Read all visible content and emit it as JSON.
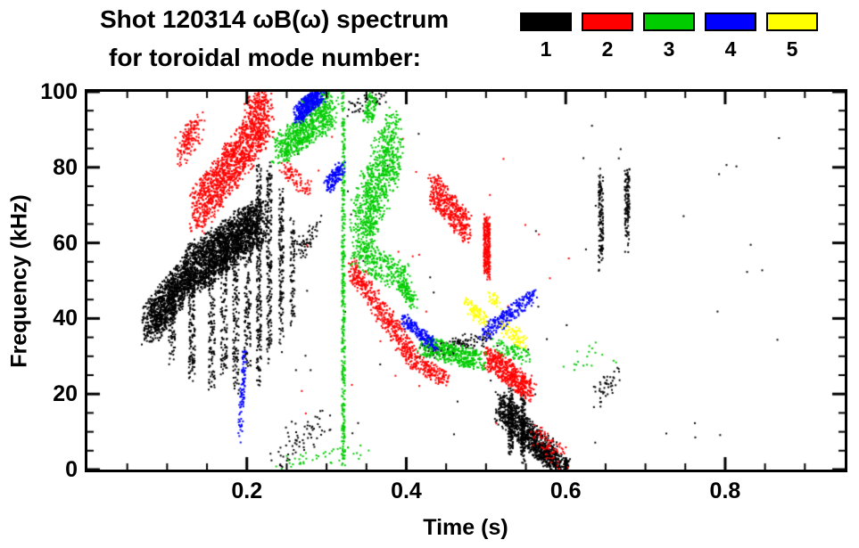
{
  "header": {
    "line1": "Shot 120314 ωB(ω) spectrum",
    "line2": "for toroidal mode number:"
  },
  "legend": {
    "items": [
      {
        "label": "1",
        "color": "#000000"
      },
      {
        "label": "2",
        "color": "#ff0000"
      },
      {
        "label": "3",
        "color": "#00cc00"
      },
      {
        "label": "4",
        "color": "#0000ff"
      },
      {
        "label": "5",
        "color": "#ffff00"
      }
    ]
  },
  "chart_data": {
    "type": "scatter",
    "title": "Shot 120314 ωB(ω) spectrum for toroidal mode number",
    "xlabel": "Time (s)",
    "ylabel": "Frequency (kHz)",
    "xlim": [
      0,
      0.95
    ],
    "ylim": [
      0,
      100
    ],
    "background": "#ffffff",
    "axis_color": "#000000",
    "grid": false,
    "legend_position": "top-right",
    "x_ticks": {
      "major": [
        0.2,
        0.4,
        0.6,
        0.8
      ],
      "labels": [
        "0.2",
        "0.4",
        "0.6",
        "0.8"
      ],
      "minor_step": 0.05
    },
    "y_ticks": {
      "major": [
        0,
        20,
        40,
        60,
        80,
        100
      ],
      "labels": [
        "0",
        "20",
        "40",
        "60",
        "80",
        "100"
      ],
      "minor_step": 5
    },
    "series": [
      {
        "name": "1",
        "color": "#000000",
        "clusters": [
          {
            "t": [
              0.075,
              0.13
            ],
            "f": [
              38,
              53
            ],
            "jt": 0.01,
            "jf": 5,
            "n": 1100
          },
          {
            "t": [
              0.13,
              0.215
            ],
            "f": [
              53,
              66
            ],
            "jt": 0.012,
            "jf": 6,
            "n": 1900
          },
          {
            "t": [
              0.105,
              0.105
            ],
            "f": [
              30,
              48
            ],
            "jt": 0.004,
            "jf": 2,
            "n": 90
          },
          {
            "t": [
              0.13,
              0.13
            ],
            "f": [
              24,
              52
            ],
            "jt": 0.004,
            "jf": 2,
            "n": 130
          },
          {
            "t": [
              0.155,
              0.155
            ],
            "f": [
              22,
              60
            ],
            "jt": 0.004,
            "jf": 2,
            "n": 150
          },
          {
            "t": [
              0.17,
              0.17
            ],
            "f": [
              26,
              62
            ],
            "jt": 0.004,
            "jf": 2,
            "n": 140
          },
          {
            "t": [
              0.185,
              0.185
            ],
            "f": [
              22,
              64
            ],
            "jt": 0.004,
            "jf": 2,
            "n": 160
          },
          {
            "t": [
              0.2,
              0.2
            ],
            "f": [
              28,
              68
            ],
            "jt": 0.004,
            "jf": 2,
            "n": 160
          },
          {
            "t": [
              0.214,
              0.214
            ],
            "f": [
              24,
              80
            ],
            "jt": 0.003,
            "jf": 3,
            "n": 240
          },
          {
            "t": [
              0.227,
              0.227
            ],
            "f": [
              30,
              80
            ],
            "jt": 0.003,
            "jf": 3,
            "n": 200
          },
          {
            "t": [
              0.242,
              0.242
            ],
            "f": [
              34,
              74
            ],
            "jt": 0.003,
            "jf": 3,
            "n": 150
          },
          {
            "t": [
              0.256,
              0.256
            ],
            "f": [
              40,
              66
            ],
            "jt": 0.003,
            "jf": 2,
            "n": 80
          },
          {
            "t": [
              0.263,
              0.285
            ],
            "f": [
              58,
              64
            ],
            "jt": 0.006,
            "jf": 3,
            "n": 60
          },
          {
            "t": [
              0.23,
              0.3
            ],
            "f": [
              3,
              14
            ],
            "jt": 0.015,
            "jf": 4,
            "n": 70
          },
          {
            "t": [
              0.33,
              0.38
            ],
            "f": [
              95,
              100
            ],
            "jt": 0.01,
            "jf": 2,
            "n": 60
          },
          {
            "t": [
              0.42,
              0.5
            ],
            "f": [
              31,
              35
            ],
            "jt": 0.015,
            "jf": 2,
            "n": 130
          },
          {
            "t": [
              0.515,
              0.585
            ],
            "f": [
              17,
              3
            ],
            "jt": 0.006,
            "jf": 4,
            "n": 800
          },
          {
            "t": [
              0.53,
              0.53
            ],
            "f": [
              5,
              21
            ],
            "jt": 0.003,
            "jf": 2,
            "n": 140
          },
          {
            "t": [
              0.545,
              0.545
            ],
            "f": [
              3,
              19
            ],
            "jt": 0.003,
            "jf": 2,
            "n": 140
          },
          {
            "t": [
              0.56,
              0.6
            ],
            "f": [
              6,
              1
            ],
            "jt": 0.006,
            "jf": 2,
            "n": 220
          },
          {
            "t": [
              0.643,
              0.643
            ],
            "f": [
              55,
              78
            ],
            "jt": 0.003,
            "jf": 3,
            "n": 130
          },
          {
            "t": [
              0.676,
              0.676
            ],
            "f": [
              60,
              80
            ],
            "jt": 0.003,
            "jf": 3,
            "n": 120
          },
          {
            "t": [
              0.64,
              0.66
            ],
            "f": [
              19,
              25
            ],
            "jt": 0.008,
            "jf": 3,
            "n": 45
          },
          {
            "t": [
              0.55,
              0.55
            ],
            "f": [
              50,
              50
            ],
            "jt": 0.33,
            "jf": 45,
            "n": 55
          }
        ]
      },
      {
        "name": "2",
        "color": "#ff0000",
        "clusters": [
          {
            "t": [
              0.115,
              0.14
            ],
            "f": [
              84,
              92
            ],
            "jt": 0.007,
            "jf": 4,
            "n": 150
          },
          {
            "t": [
              0.135,
              0.225
            ],
            "f": [
              68,
              94
            ],
            "jt": 0.009,
            "jf": 6,
            "n": 1300
          },
          {
            "t": [
              0.2,
              0.225
            ],
            "f": [
              96,
              100
            ],
            "jt": 0.006,
            "jf": 2,
            "n": 90
          },
          {
            "t": [
              0.245,
              0.278
            ],
            "f": [
              80,
              74
            ],
            "jt": 0.006,
            "jf": 2,
            "n": 80
          },
          {
            "t": [
              0.33,
              0.41
            ],
            "f": [
              54,
              29
            ],
            "jt": 0.006,
            "jf": 3,
            "n": 480
          },
          {
            "t": [
              0.41,
              0.45
            ],
            "f": [
              29,
              24
            ],
            "jt": 0.006,
            "jf": 2,
            "n": 150
          },
          {
            "t": [
              0.43,
              0.476
            ],
            "f": [
              75,
              64
            ],
            "jt": 0.006,
            "jf": 4,
            "n": 420
          },
          {
            "t": [
              0.5,
              0.5
            ],
            "f": [
              52,
              66
            ],
            "jt": 0.004,
            "jf": 2,
            "n": 280
          },
          {
            "t": [
              0.502,
              0.556
            ],
            "f": [
              30,
              21
            ],
            "jt": 0.007,
            "jf": 3,
            "n": 500
          },
          {
            "t": [
              0.56,
              0.595
            ],
            "f": [
              10,
              3
            ],
            "jt": 0.008,
            "jf": 3,
            "n": 70
          },
          {
            "t": [
              0.45,
              0.45
            ],
            "f": [
              50,
              50
            ],
            "jt": 0.2,
            "jf": 40,
            "n": 30
          }
        ]
      },
      {
        "name": "3",
        "color": "#00cc00",
        "clusters": [
          {
            "t": [
              0.24,
              0.305
            ],
            "f": [
              85,
              95
            ],
            "jt": 0.01,
            "jf": 4,
            "n": 650
          },
          {
            "t": [
              0.27,
              0.3
            ],
            "f": [
              97,
              100
            ],
            "jt": 0.008,
            "jf": 1.5,
            "n": 90
          },
          {
            "t": [
              0.32,
              0.32
            ],
            "f": [
              3,
              100
            ],
            "jt": 0.002,
            "jf": 3,
            "n": 360
          },
          {
            "t": [
              0.338,
              0.385
            ],
            "f": [
              62,
              88
            ],
            "jt": 0.012,
            "jf": 9,
            "n": 850
          },
          {
            "t": [
              0.35,
              0.36
            ],
            "f": [
              93,
              100
            ],
            "jt": 0.006,
            "jf": 2,
            "n": 90
          },
          {
            "t": [
              0.345,
              0.4
            ],
            "f": [
              57,
              50
            ],
            "jt": 0.008,
            "jf": 4,
            "n": 260
          },
          {
            "t": [
              0.39,
              0.41
            ],
            "f": [
              50,
              44
            ],
            "jt": 0.005,
            "jf": 2,
            "n": 90
          },
          {
            "t": [
              0.42,
              0.49
            ],
            "f": [
              33,
              29
            ],
            "jt": 0.01,
            "jf": 2.5,
            "n": 420
          },
          {
            "t": [
              0.51,
              0.553
            ],
            "f": [
              33,
              30
            ],
            "jt": 0.008,
            "jf": 2,
            "n": 80
          },
          {
            "t": [
              0.24,
              0.34
            ],
            "f": [
              2,
              5
            ],
            "jt": 0.02,
            "jf": 2,
            "n": 45
          },
          {
            "t": [
              0.6,
              0.66
            ],
            "f": [
              28,
              32
            ],
            "jt": 0.015,
            "jf": 3,
            "n": 18
          }
        ]
      },
      {
        "name": "4",
        "color": "#0000ff",
        "clusters": [
          {
            "t": [
              0.262,
              0.292
            ],
            "f": [
              94,
              100
            ],
            "jt": 0.006,
            "jf": 2.5,
            "n": 420
          },
          {
            "t": [
              0.3,
              0.318
            ],
            "f": [
              75,
              80
            ],
            "jt": 0.005,
            "jf": 2,
            "n": 140
          },
          {
            "t": [
              0.19,
              0.196
            ],
            "f": [
              10,
              30
            ],
            "jt": 0.003,
            "jf": 3,
            "n": 90
          },
          {
            "t": [
              0.395,
              0.435
            ],
            "f": [
              40,
              33
            ],
            "jt": 0.005,
            "jf": 1.5,
            "n": 190
          },
          {
            "t": [
              0.495,
              0.557
            ],
            "f": [
              36,
              46
            ],
            "jt": 0.006,
            "jf": 2,
            "n": 240
          }
        ]
      },
      {
        "name": "5",
        "color": "#ffff00",
        "clusters": [
          {
            "t": [
              0.475,
              0.497
            ],
            "f": [
              44,
              40
            ],
            "jt": 0.005,
            "jf": 2,
            "n": 90
          },
          {
            "t": [
              0.505,
              0.515
            ],
            "f": [
              46,
              44
            ],
            "jt": 0.004,
            "jf": 1.5,
            "n": 30
          },
          {
            "t": [
              0.52,
              0.548
            ],
            "f": [
              38,
              34
            ],
            "jt": 0.006,
            "jf": 2,
            "n": 80
          }
        ]
      }
    ]
  }
}
